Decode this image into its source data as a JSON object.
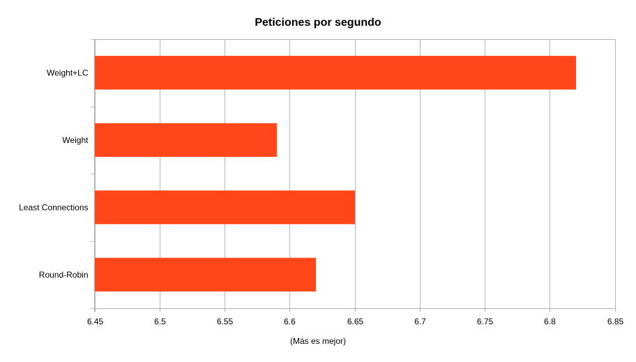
{
  "chart_data": {
    "type": "bar",
    "orientation": "horizontal",
    "title": "Peticiones por segundo",
    "xlabel": "(Más es mejor)",
    "ylabel": "",
    "categories": [
      "Weight+LC",
      "Weight",
      "Least Connections",
      "Round-Robin"
    ],
    "values": [
      6.82,
      6.59,
      6.65,
      6.62
    ],
    "xlim": [
      6.45,
      6.85
    ],
    "xticks": [
      "6.45",
      "6.5",
      "6.55",
      "6.6",
      "6.65",
      "6.7",
      "6.75",
      "6.8",
      "6.85"
    ],
    "grid": true,
    "legend": "none",
    "bar_color": "#ff4719",
    "grid_color": "#b3b3b3"
  }
}
